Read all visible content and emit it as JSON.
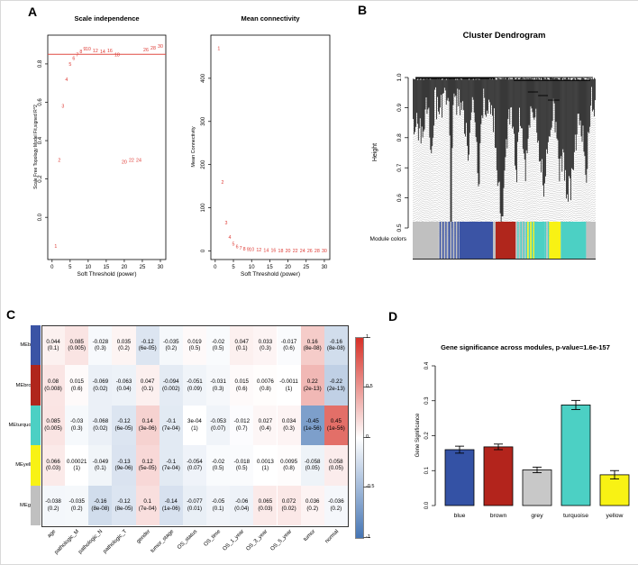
{
  "figure": {
    "panel_labels": {
      "a": "A",
      "b": "B",
      "c": "C",
      "d": "D"
    }
  },
  "chart_data": [
    {
      "id": "scale_independence",
      "type": "scatter",
      "title": "Scale independence",
      "xlabel": "Soft Threshold (power)",
      "ylabel": "Scale Free Topology Model Fit,signed R^2",
      "point_color": "#DE3A34",
      "x": [
        1,
        2,
        3,
        4,
        5,
        6,
        7,
        8,
        9,
        10,
        12,
        14,
        16,
        18,
        20,
        22,
        24,
        26,
        28,
        30
      ],
      "y": [
        -0.15,
        0.3,
        0.58,
        0.72,
        0.8,
        0.83,
        0.85,
        0.865,
        0.88,
        0.88,
        0.87,
        0.865,
        0.87,
        0.85,
        0.29,
        0.3,
        0.3,
        0.875,
        0.885,
        0.893
      ],
      "xlim": [
        -1.2,
        31.5
      ],
      "ylim": [
        -0.22,
        0.95
      ],
      "xticks": [
        0,
        5,
        10,
        15,
        20,
        25,
        30
      ],
      "xtick_labels": [
        "0",
        "5",
        "10",
        "15",
        "20",
        "25",
        "30"
      ],
      "yticks": [
        0,
        0.2,
        0.4,
        0.6,
        0.8
      ],
      "ytick_labels": [
        "0.0",
        "0.2",
        "0.4",
        "0.6",
        "0.8"
      ],
      "hline": {
        "y": 0.85,
        "color": "#E04A42"
      }
    },
    {
      "id": "mean_connectivity",
      "type": "scatter",
      "title": "Mean connectivity",
      "xlabel": "Soft Threshold (power)",
      "ylabel": "Mean Connectivity",
      "point_color": "#DE3A34",
      "x": [
        1,
        2,
        3,
        4,
        5,
        6,
        7,
        8,
        9,
        10,
        12,
        14,
        16,
        18,
        20,
        22,
        24,
        26,
        28,
        30
      ],
      "y": [
        470,
        160,
        66,
        32,
        17,
        10,
        7,
        5,
        4,
        3.5,
        2.5,
        2,
        1.6,
        1.3,
        1.1,
        0.9,
        0.8,
        0.7,
        0.6,
        0.5
      ],
      "xlim": [
        -1.2,
        31.5
      ],
      "ylim": [
        -20,
        500
      ],
      "xticks": [
        0,
        5,
        10,
        15,
        20,
        25,
        30
      ],
      "xtick_labels": [
        "0",
        "5",
        "10",
        "15",
        "20",
        "25",
        "30"
      ],
      "yticks": [
        0,
        100,
        200,
        300,
        400
      ],
      "ytick_labels": [
        "0",
        "100",
        "200",
        "300",
        "400"
      ]
    },
    {
      "id": "cluster_dendrogram",
      "type": "dendrogram",
      "title": "Cluster Dendrogram",
      "ylabel": "Height",
      "yticks": [
        0.5,
        0.6,
        0.7,
        0.8,
        0.9,
        1.0
      ],
      "ytick_labels": [
        "0.5",
        "0.6",
        "0.7",
        "0.8",
        "0.9",
        "1.0"
      ],
      "ylim": [
        0.47,
        1.0
      ],
      "module_bar_label": "Module colors",
      "module_segments": [
        {
          "c": "#C0C0C0",
          "w": 12
        },
        {
          "s": [
            "#C0C0C0",
            "#3B54A5"
          ],
          "w": 5
        },
        {
          "s": [
            "#3B54A5",
            "#C0C0C0"
          ],
          "w": 5
        },
        {
          "c": "#3B54A5",
          "w": 16
        },
        {
          "c": "#C0C0C0",
          "w": 1.2
        },
        {
          "c": "#B0261C",
          "w": 9.5
        },
        {
          "c": "#C0C0C0",
          "w": 0.8
        },
        {
          "s": [
            "#4CD0C4",
            "#C0C0C0"
          ],
          "w": 4
        },
        {
          "s": [
            "#4CD0C4",
            "#F8F214"
          ],
          "w": 4
        },
        {
          "c": "#4CD0C4",
          "w": 5
        },
        {
          "s": [
            "#4CD0C4",
            "#C0C0C0"
          ],
          "w": 2
        },
        {
          "c": "#F8F214",
          "w": 5.5
        },
        {
          "c": "#4CD0C4",
          "w": 12
        },
        {
          "c": "#C0C0C0",
          "w": 4.5
        }
      ]
    },
    {
      "id": "module_trait_heatmap",
      "type": "heatmap",
      "pos_color": "#D73027",
      "neg_color": "#4575B4",
      "colorbar_ticks": [
        "1",
        "0.5",
        "0",
        "-0.5",
        "-1"
      ],
      "columns": [
        "age",
        "pathologic_M",
        "pathologic_N",
        "pathologic_T",
        "gender",
        "tumor_stage",
        "OS_status",
        "OS_time",
        "OS_1_year",
        "OS_3_year",
        "OS_5_year",
        "tumor",
        "normal"
      ],
      "rows": [
        {
          "name": "MEblue",
          "color": "#3B54A5",
          "cells": [
            [
              "0.044",
              "(0.1)"
            ],
            [
              "0.085",
              "(0.005)"
            ],
            [
              "-0.028",
              "(0.3)"
            ],
            [
              "0.035",
              "(0.2)"
            ],
            [
              "-0.12",
              "(6e-05)"
            ],
            [
              "-0.035",
              "(0.2)"
            ],
            [
              "0.019",
              "(0.5)"
            ],
            [
              "-0.02",
              "(0.5)"
            ],
            [
              "0.047",
              "(0.1)"
            ],
            [
              "0.033",
              "(0.3)"
            ],
            [
              "-0.017",
              "(0.6)"
            ],
            [
              "0.16",
              "(8e-08)"
            ],
            [
              "-0.16",
              "(8e-08)"
            ]
          ]
        },
        {
          "name": "MEbrown",
          "color": "#B0261C",
          "cells": [
            [
              "0.08",
              "(0.008)"
            ],
            [
              "0.015",
              "(0.6)"
            ],
            [
              "-0.069",
              "(0.02)"
            ],
            [
              "-0.063",
              "(0.04)"
            ],
            [
              "0.047",
              "(0.1)"
            ],
            [
              "-0.094",
              "(0.002)"
            ],
            [
              "-0.051",
              "(0.09)"
            ],
            [
              "-0.031",
              "(0.3)"
            ],
            [
              "0.015",
              "(0.6)"
            ],
            [
              "0.0076",
              "(0.8)"
            ],
            [
              "-0.0011",
              "(1)"
            ],
            [
              "0.22",
              "(2e-13)"
            ],
            [
              "-0.22",
              "(2e-13)"
            ]
          ]
        },
        {
          "name": "MEturquoise",
          "color": "#4CD0C4",
          "cells": [
            [
              "0.085",
              "(0.005)"
            ],
            [
              "-0.03",
              "(0.3)"
            ],
            [
              "-0.068",
              "(0.02)"
            ],
            [
              "-0.12",
              "(6e-05)"
            ],
            [
              "0.14",
              "(3e-06)"
            ],
            [
              "-0.1",
              "(7e-04)"
            ],
            [
              "3e-04",
              "(1)"
            ],
            [
              "-0.053",
              "(0.07)"
            ],
            [
              "-0.012",
              "(0.7)"
            ],
            [
              "0.027",
              "(0.4)"
            ],
            [
              "0.034",
              "(0.3)"
            ],
            [
              "-0.45",
              "(1e-56)"
            ],
            [
              "0.45",
              "(1e-56)"
            ]
          ]
        },
        {
          "name": "MEyellow",
          "color": "#F8F214",
          "cells": [
            [
              "0.066",
              "(0.03)"
            ],
            [
              "0.00021",
              "(1)"
            ],
            [
              "-0.049",
              "(0.1)"
            ],
            [
              "-0.13",
              "(9e-06)"
            ],
            [
              "0.12",
              "(5e-05)"
            ],
            [
              "-0.1",
              "(7e-04)"
            ],
            [
              "-0.054",
              "(0.07)"
            ],
            [
              "-0.02",
              "(0.5)"
            ],
            [
              "-0.018",
              "(0.5)"
            ],
            [
              "0.0013",
              "(1)"
            ],
            [
              "0.0095",
              "(0.8)"
            ],
            [
              "-0.058",
              "(0.05)"
            ],
            [
              "0.058",
              "(0.05)"
            ]
          ]
        },
        {
          "name": "MEgrey",
          "color": "#C0C0C0",
          "cells": [
            [
              "-0.038",
              "(0.2)"
            ],
            [
              "-0.035",
              "(0.2)"
            ],
            [
              "-0.16",
              "(8e-08)"
            ],
            [
              "-0.12",
              "(8e-05)"
            ],
            [
              "0.1",
              "(7e-04)"
            ],
            [
              "-0.14",
              "(1e-06)"
            ],
            [
              "-0.077",
              "(0.01)"
            ],
            [
              "-0.05",
              "(0.1)"
            ],
            [
              "-0.06",
              "(0.04)"
            ],
            [
              "0.065",
              "(0.03)"
            ],
            [
              "0.072",
              "(0.02)"
            ],
            [
              "0.036",
              "(0.2)"
            ],
            [
              "-0.036",
              "(0.2)"
            ]
          ]
        }
      ]
    },
    {
      "id": "gene_significance",
      "type": "bar",
      "title": "Gene significance across modules, p-value=1.6e-157",
      "ylabel": "Gene Significance",
      "categories": [
        "blue",
        "brown",
        "grey",
        "turquoise",
        "yellow"
      ],
      "values": [
        0.16,
        0.168,
        0.102,
        0.288,
        0.088
      ],
      "errors": [
        0.01,
        0.008,
        0.008,
        0.013,
        0.012
      ],
      "colors": [
        "#3452A5",
        "#B3241C",
        "#C8C8C8",
        "#4CD0C4",
        "#F8F214"
      ],
      "yticks": [
        0,
        0.1,
        0.2,
        0.3,
        0.4
      ],
      "ytick_labels": [
        "0.0",
        "0.1",
        "0.2",
        "0.3",
        "0.4"
      ],
      "ylim": [
        0,
        0.42
      ]
    }
  ]
}
